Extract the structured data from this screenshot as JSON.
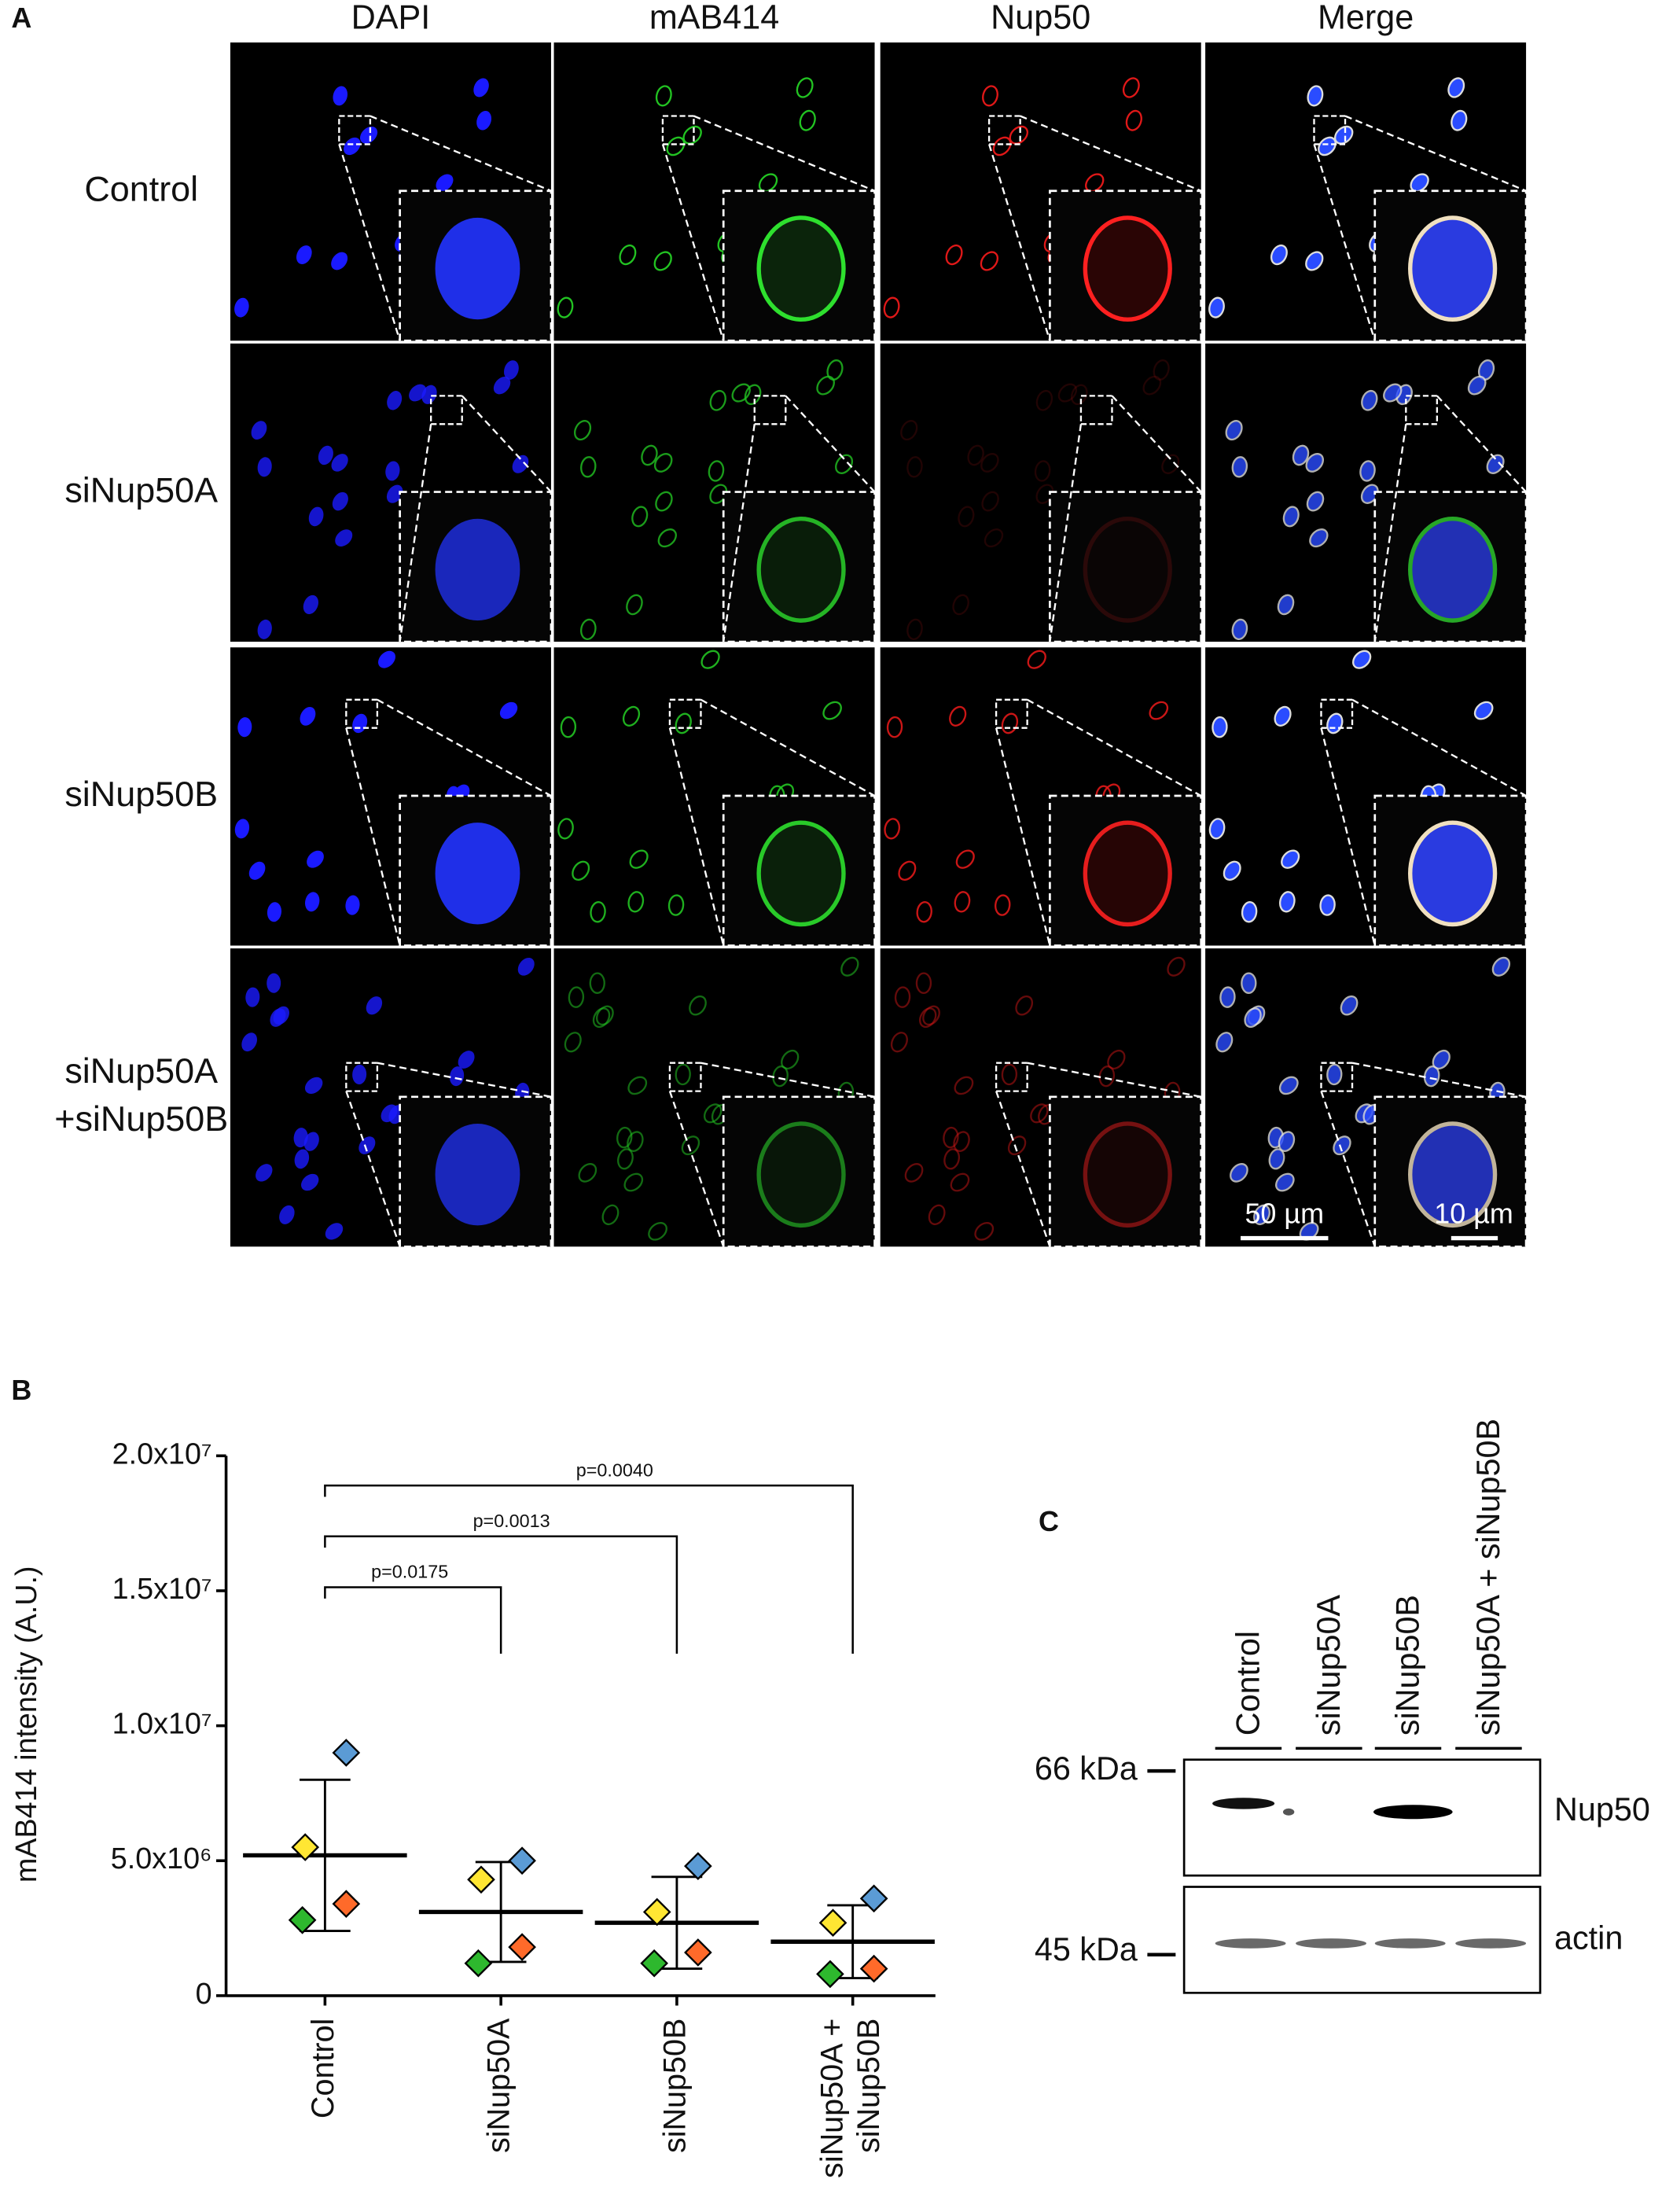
{
  "panel_a": {
    "letter": "A",
    "columns": [
      "DAPI",
      "mAB414",
      "Nup50",
      "Merge"
    ],
    "rows": [
      [
        "Control"
      ],
      [
        "siNup50A"
      ],
      [
        "siNup50B"
      ],
      [
        "siNup50A",
        "+siNup50B"
      ]
    ],
    "scale_bars": [
      "50 µm",
      "10 µm"
    ]
  },
  "chart_data": {
    "type": "dotplot",
    "letter": "B",
    "ylabel": "mAB414 intensity (A.U.)",
    "categories": [
      "Control",
      "siNup50A",
      "siNup50B",
      "siNup50A +\nsiNup50B"
    ],
    "means": [
      5200000,
      3100000,
      2700000,
      2000000
    ],
    "sd": [
      2800000,
      1850000,
      1700000,
      1350000
    ],
    "replicates": [
      {
        "color": "#5b9bd5",
        "values": [
          9000000,
          5000000,
          4800000,
          3600000
        ]
      },
      {
        "color": "#ffe633",
        "values": [
          5500000,
          4300000,
          3100000,
          2700000
        ]
      },
      {
        "color": "#ff6a2a",
        "values": [
          3400000,
          1800000,
          1600000,
          1000000
        ]
      },
      {
        "color": "#2eb82e",
        "values": [
          2800000,
          1200000,
          1200000,
          800000
        ]
      }
    ],
    "comparisons": [
      {
        "from": 0,
        "to": 1,
        "label": "p=0.0175"
      },
      {
        "from": 0,
        "to": 2,
        "label": "p=0.0013"
      },
      {
        "from": 0,
        "to": 3,
        "label": "p=0.0040"
      }
    ],
    "ylim": [
      0,
      20000000
    ],
    "yticks": [
      0,
      {
        "value": 5000000,
        "label": "5.0x10⁶"
      },
      {
        "value": 10000000,
        "label": "1.0x10⁷"
      },
      {
        "value": 15000000,
        "label": "1.5x10⁷"
      },
      {
        "value": 20000000,
        "label": "2.0x10⁷"
      }
    ]
  },
  "panel_c": {
    "letter": "C",
    "lanes": [
      "Control",
      "siNup50A",
      "siNup50B",
      "siNup50A + siNup50B"
    ],
    "markers": [
      "66 kDa",
      "45 kDa"
    ],
    "bands": [
      "Nup50",
      "actin"
    ]
  }
}
